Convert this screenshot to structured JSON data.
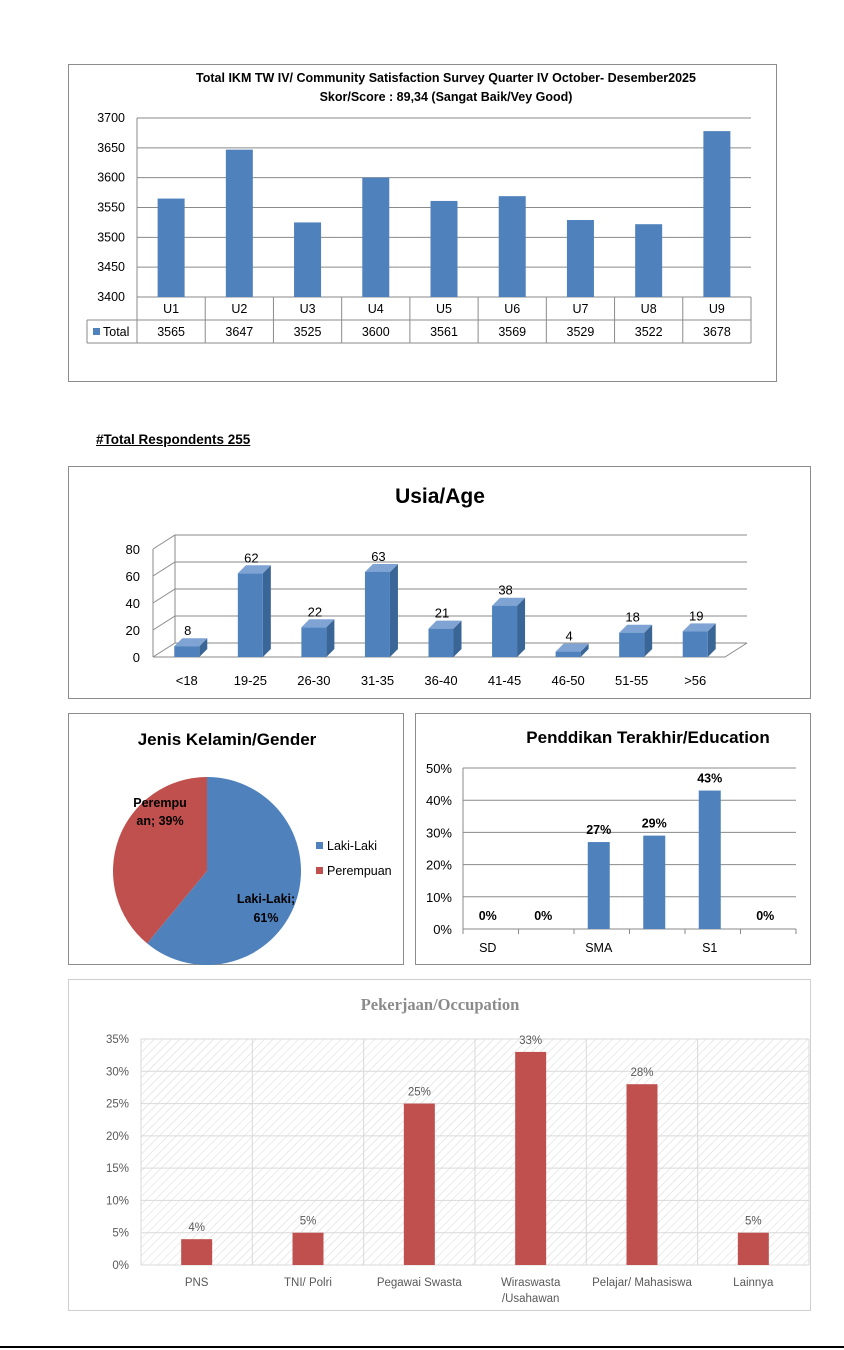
{
  "respondents": {
    "label": "#Total Respondents  255"
  },
  "colors": {
    "blue": "#4f81bd",
    "blue_side": "#3a6597",
    "blue_top": "#7fa3d3",
    "red": "#c0504d"
  },
  "chart_data": [
    {
      "id": "ikm",
      "type": "bar",
      "title": [
        "Total IKM TW IV/ Community Satisfaction Survey Quarter IV October- Desember2025",
        "Skor/Score : 89,34 (Sangat Baik/Vey Good)"
      ],
      "categories": [
        "U1",
        "U2",
        "U3",
        "U4",
        "U5",
        "U6",
        "U7",
        "U8",
        "U9"
      ],
      "series": [
        {
          "name": "Total",
          "values": [
            3565,
            3647,
            3525,
            3600,
            3561,
            3569,
            3529,
            3522,
            3678
          ]
        }
      ],
      "ylim": [
        3400,
        3700
      ],
      "yticks": [
        3400,
        3450,
        3500,
        3550,
        3600,
        3650,
        3700
      ],
      "grid": true,
      "legend": "data-table"
    },
    {
      "id": "age",
      "type": "bar",
      "title": "Usia/Age",
      "categories": [
        "<18",
        "19-25",
        "26-30",
        "31-35",
        "36-40",
        "41-45",
        "46-50",
        "51-55",
        ">56"
      ],
      "values": [
        8,
        62,
        22,
        63,
        21,
        38,
        4,
        18,
        19
      ],
      "ylim": [
        0,
        80
      ],
      "yticks": [
        0,
        20,
        40,
        60,
        80
      ],
      "grid": true,
      "style": "3d"
    },
    {
      "id": "gender",
      "type": "pie",
      "title": "Jenis Kelamin/Gender",
      "slices": [
        {
          "name": "Laki-Laki",
          "value": 61,
          "label": [
            "Laki-Laki;",
            "61%"
          ]
        },
        {
          "name": "Perempuan",
          "value": 39,
          "label": [
            "Perempu",
            "an; 39%"
          ]
        }
      ],
      "legend": "right"
    },
    {
      "id": "education",
      "type": "bar",
      "title": "Penddikan Terakhir/Education",
      "categories": [
        "SD",
        "",
        "SMA",
        "",
        "S1",
        ""
      ],
      "values": [
        0,
        0,
        27,
        29,
        43,
        0
      ],
      "data_labels": [
        "0%",
        "0%",
        "27%",
        "29%",
        "43%",
        "0%"
      ],
      "ylim": [
        0,
        50
      ],
      "yticks": [
        "0%",
        "10%",
        "20%",
        "30%",
        "40%",
        "50%"
      ],
      "grid": true
    },
    {
      "id": "occupation",
      "type": "bar",
      "title": "Pekerjaan/Occupation",
      "categories": [
        [
          "PNS"
        ],
        [
          "TNI/ Polri"
        ],
        [
          "Pegawai Swasta"
        ],
        [
          "Wiraswasta",
          "/Usahawan"
        ],
        [
          "Pelajar/ Mahasiswa"
        ],
        [
          "Lainnya"
        ]
      ],
      "values": [
        4,
        5,
        25,
        33,
        28,
        5
      ],
      "data_labels": [
        "4%",
        "5%",
        "25%",
        "33%",
        "28%",
        "5%"
      ],
      "ylim": [
        0,
        35
      ],
      "yticks": [
        "0%",
        "5%",
        "10%",
        "15%",
        "20%",
        "25%",
        "30%",
        "35%"
      ],
      "grid": true
    }
  ]
}
